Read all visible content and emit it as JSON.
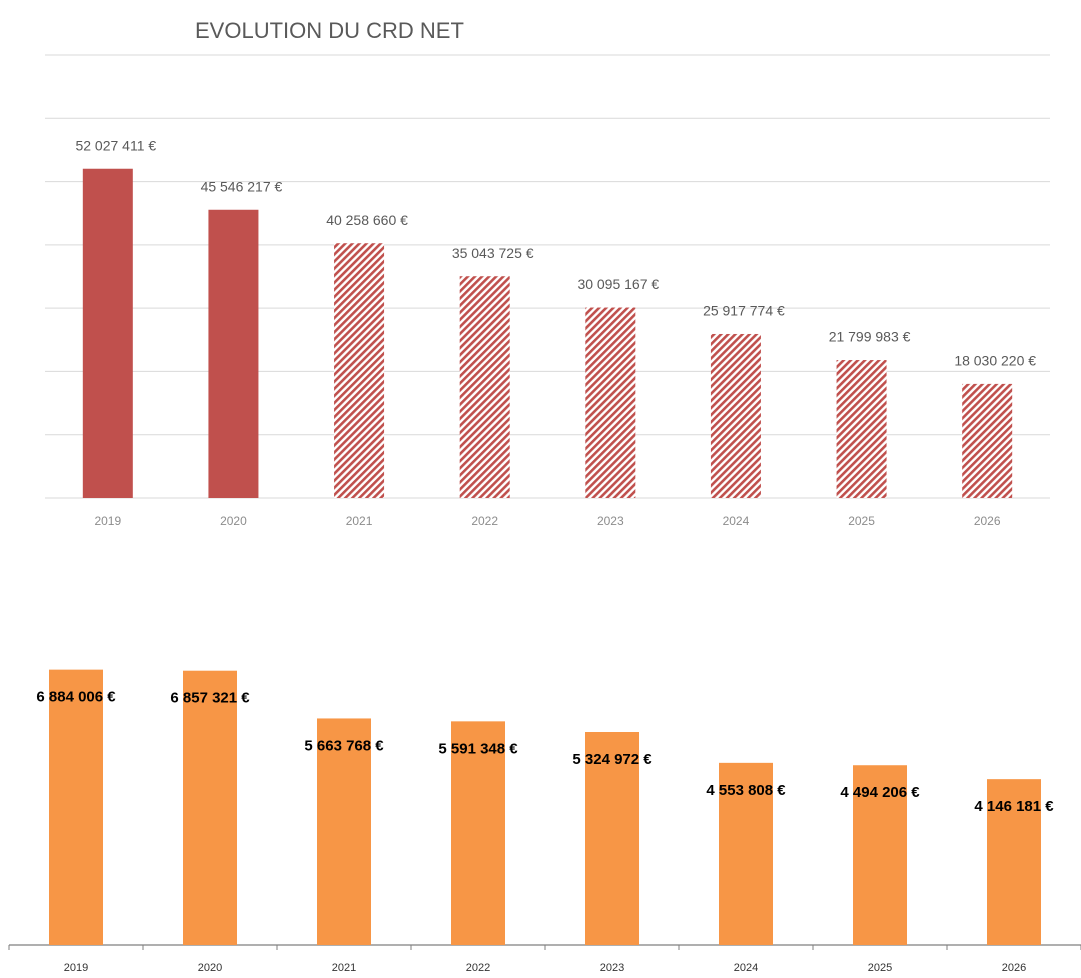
{
  "chart_data": [
    {
      "type": "bar",
      "title": "EVOLUTION DU CRD NET",
      "categories": [
        "2019",
        "2020",
        "2021",
        "2022",
        "2023",
        "2024",
        "2025",
        "2026"
      ],
      "values": [
        52027411,
        45546217,
        40258660,
        35043725,
        30095167,
        25917774,
        21799983,
        18030220
      ],
      "value_labels": [
        "52 027 411 €",
        "45 546 217 €",
        "40 258 660 €",
        "35 043 725 €",
        "30 095 167 €",
        "25 917 774 €",
        "21 799 983 €",
        "18 030 220 €"
      ],
      "color": "#c0504d",
      "patterns": [
        "solid",
        "solid",
        "hatched",
        "hatched",
        "hatched",
        "hatched",
        "hatched",
        "hatched"
      ],
      "ylim": [
        0,
        70000000
      ],
      "yticks": [
        0,
        10000000,
        20000000,
        30000000,
        40000000,
        50000000,
        60000000,
        70000000
      ],
      "grid": true
    },
    {
      "type": "bar",
      "categories": [
        "2019",
        "2020",
        "2021",
        "2022",
        "2023",
        "2024",
        "2025",
        "2026"
      ],
      "values": [
        6884006,
        6857321,
        5663768,
        5591348,
        5324972,
        4553808,
        4494206,
        4146181
      ],
      "value_labels": [
        "6 884 006 €",
        "6 857 321 €",
        "5 663 768 €",
        "5 591 348 €",
        "5 324 972 €",
        "4 553 808 €",
        "4 494 206 €",
        "4 146 181 €"
      ],
      "color": "#f79646",
      "ylim": [
        0,
        7500000
      ],
      "grid": false
    }
  ]
}
